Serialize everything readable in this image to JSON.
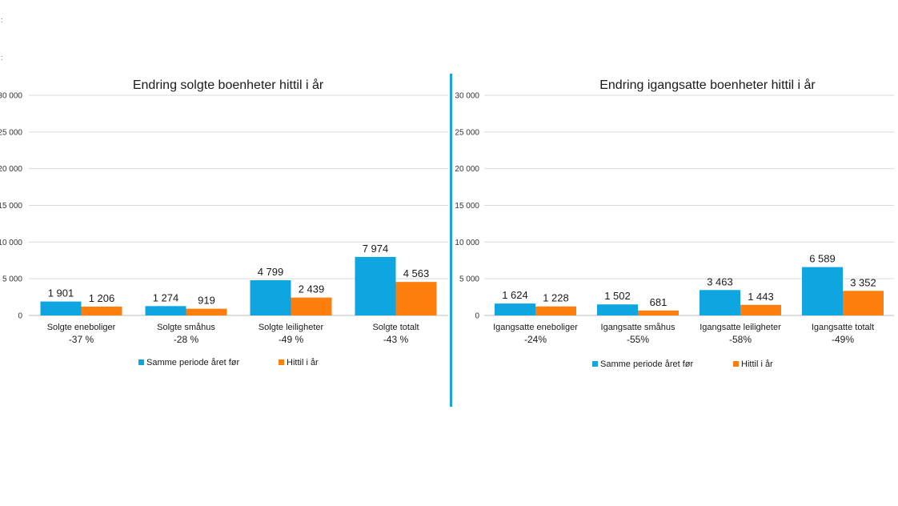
{
  "page": {
    "marker_top": ":",
    "marker_bottom": ":"
  },
  "chart_data": [
    {
      "type": "bar",
      "title": "Endring solgte boenheter hittil i år",
      "categories": [
        "Solgte eneboliger",
        "Solgte småhus",
        "Solgte leiligheter",
        "Solgte totalt"
      ],
      "changes": [
        "-37 %",
        "-28 %",
        "-49 %",
        "-43 %"
      ],
      "series": [
        {
          "name": "Samme periode året før",
          "color": "#0ea5e0",
          "values": [
            1901,
            1274,
            4799,
            7974
          ],
          "labels": [
            "1 901",
            "1 274",
            "4 799",
            "7 974"
          ]
        },
        {
          "name": "Hittil i år",
          "color": "#ff7f0e",
          "values": [
            1206,
            919,
            2439,
            4563
          ],
          "labels": [
            "1 206",
            "919",
            "2 439",
            "4 563"
          ]
        }
      ],
      "ylim": [
        0,
        30000
      ],
      "yticks": [
        0,
        5000,
        10000,
        15000,
        20000,
        25000,
        30000
      ],
      "ytick_labels": [
        "0",
        "5 000",
        "10 000",
        "15 000",
        "20 000",
        "25 000",
        "30 000"
      ],
      "grid": true,
      "legend": "bottom"
    },
    {
      "type": "bar",
      "title": "Endring igangsatte boenheter hittil i år",
      "categories": [
        "Igangsatte eneboliger",
        "Igangsatte småhus",
        "Igangsatte leiligheter",
        "Igangsatte  totalt"
      ],
      "changes": [
        "-24%",
        "-55%",
        "-58%",
        "-49%"
      ],
      "series": [
        {
          "name": "Samme periode året før",
          "color": "#0ea5e0",
          "values": [
            1624,
            1502,
            3463,
            6589
          ],
          "labels": [
            "1 624",
            "1 502",
            "3 463",
            "6 589"
          ]
        },
        {
          "name": "Hittil i år",
          "color": "#ff7f0e",
          "values": [
            1228,
            681,
            1443,
            3352
          ],
          "labels": [
            "1 228",
            "681",
            "1 443",
            "3 352"
          ]
        }
      ],
      "ylim": [
        0,
        30000
      ],
      "yticks": [
        0,
        5000,
        10000,
        15000,
        20000,
        25000,
        30000
      ],
      "ytick_labels": [
        "0",
        "5 000",
        "10 000",
        "15 000",
        "20 000",
        "25 000",
        "30 000"
      ],
      "grid": true,
      "legend": "bottom"
    }
  ]
}
